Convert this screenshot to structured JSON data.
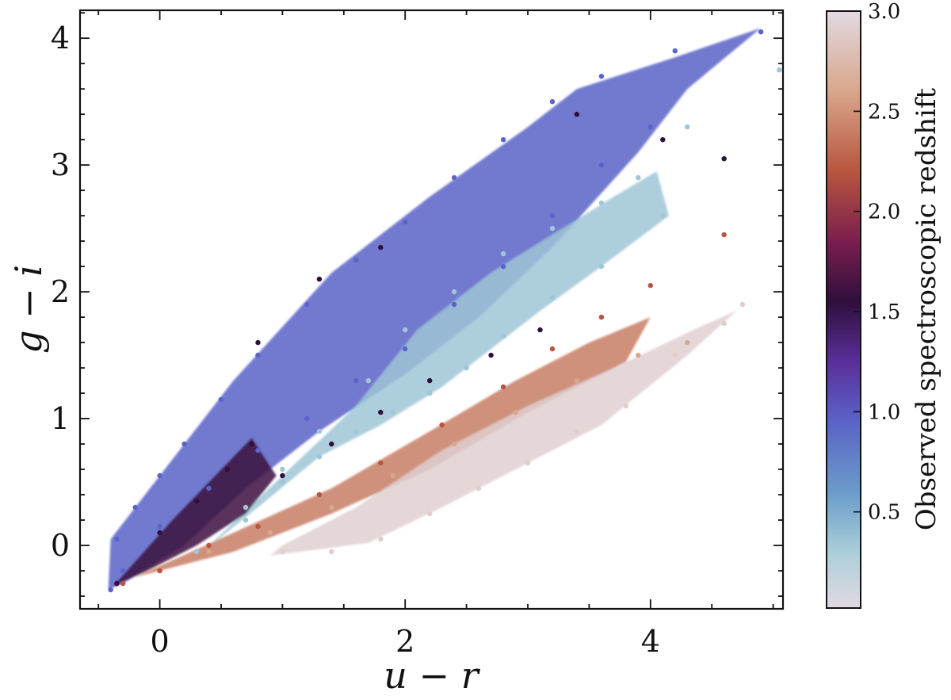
{
  "chart_data": {
    "type": "scatter",
    "title": "",
    "xlabel": "u − r",
    "ylabel": "g − i",
    "xlim": [
      -0.65,
      5.08
    ],
    "ylim": [
      -0.5,
      4.22
    ],
    "xticks": [
      0,
      2,
      4
    ],
    "yticks": [
      0,
      1,
      2,
      3,
      4
    ],
    "xtick_labels": [
      "0",
      "2",
      "4"
    ],
    "ytick_labels": [
      "0",
      "1",
      "2",
      "3",
      "4"
    ],
    "grid": false,
    "legend": "none",
    "colorbar": {
      "label": "Observed spectroscopic redshift",
      "range": [
        0.02,
        3.0
      ],
      "ticks": [
        0.5,
        1.0,
        1.5,
        2.0,
        2.5,
        3.0
      ],
      "tick_labels": [
        "0.5",
        "1.0",
        "1.5",
        "2.0",
        "2.5",
        "3.0"
      ],
      "colormap_stops": [
        {
          "z": 0.02,
          "color": "#e2d9e2"
        },
        {
          "z": 0.3,
          "color": "#aacfd9"
        },
        {
          "z": 0.6,
          "color": "#6a9bc9"
        },
        {
          "z": 0.95,
          "color": "#5b63c8"
        },
        {
          "z": 1.25,
          "color": "#5a2e9a"
        },
        {
          "z": 1.55,
          "color": "#2f0f3c"
        },
        {
          "z": 1.85,
          "color": "#7a1e4e"
        },
        {
          "z": 2.2,
          "color": "#b8553e"
        },
        {
          "z": 2.6,
          "color": "#d9a78b"
        },
        {
          "z": 3.0,
          "color": "#e2d9e2"
        }
      ]
    },
    "series": [
      {
        "z": 0.95,
        "points": [
          [
            -0.4,
            -0.35
          ],
          [
            -0.35,
            0.05
          ],
          [
            -0.2,
            0.3
          ],
          [
            0.0,
            0.55
          ],
          [
            0.2,
            0.8
          ],
          [
            0.5,
            1.15
          ],
          [
            0.8,
            1.5
          ],
          [
            1.2,
            1.9
          ],
          [
            1.6,
            2.25
          ],
          [
            2.0,
            2.55
          ],
          [
            2.4,
            2.9
          ],
          [
            2.8,
            3.2
          ],
          [
            3.2,
            3.5
          ],
          [
            3.6,
            3.7
          ],
          [
            4.2,
            3.9
          ],
          [
            4.9,
            4.05
          ],
          [
            4.0,
            3.3
          ],
          [
            3.6,
            3.0
          ],
          [
            3.2,
            2.6
          ],
          [
            2.8,
            2.2
          ],
          [
            2.4,
            1.9
          ],
          [
            2.0,
            1.55
          ],
          [
            1.6,
            1.3
          ],
          [
            1.2,
            1.0
          ],
          [
            0.8,
            0.75
          ],
          [
            0.4,
            0.45
          ],
          [
            0.0,
            0.15
          ],
          [
            -0.3,
            -0.2
          ]
        ]
      },
      {
        "z": 0.35,
        "points": [
          [
            0.3,
            -0.05
          ],
          [
            0.7,
            0.3
          ],
          [
            1.0,
            0.6
          ],
          [
            1.3,
            0.9
          ],
          [
            1.7,
            1.3
          ],
          [
            2.0,
            1.7
          ],
          [
            2.4,
            2.0
          ],
          [
            2.8,
            2.3
          ],
          [
            3.2,
            2.5
          ],
          [
            3.6,
            2.7
          ],
          [
            3.9,
            2.9
          ],
          [
            4.3,
            3.3
          ],
          [
            5.05,
            3.75
          ],
          [
            4.1,
            2.6
          ],
          [
            3.6,
            2.2
          ],
          [
            3.2,
            1.95
          ],
          [
            2.8,
            1.65
          ],
          [
            2.5,
            1.4
          ],
          [
            2.2,
            1.2
          ],
          [
            1.9,
            1.05
          ],
          [
            1.6,
            0.9
          ],
          [
            1.3,
            0.7
          ],
          [
            1.0,
            0.5
          ],
          [
            0.7,
            0.2
          ]
        ]
      },
      {
        "z": 1.55,
        "points": [
          [
            -0.35,
            -0.3
          ],
          [
            0.0,
            0.1
          ],
          [
            0.3,
            0.35
          ],
          [
            0.55,
            0.6
          ],
          [
            0.75,
            0.8
          ],
          [
            1.0,
            0.55
          ],
          [
            1.4,
            0.8
          ],
          [
            1.8,
            1.05
          ],
          [
            2.2,
            1.3
          ],
          [
            2.7,
            1.5
          ],
          [
            3.1,
            1.7
          ],
          [
            3.4,
            3.4
          ],
          [
            4.1,
            3.2
          ],
          [
            4.6,
            3.05
          ],
          [
            0.8,
            1.6
          ],
          [
            1.3,
            2.1
          ],
          [
            1.8,
            2.35
          ]
        ]
      },
      {
        "z": 2.2,
        "points": [
          [
            -0.3,
            -0.3
          ],
          [
            0.0,
            -0.2
          ],
          [
            0.4,
            0.0
          ],
          [
            0.8,
            0.15
          ],
          [
            1.3,
            0.4
          ],
          [
            1.8,
            0.65
          ],
          [
            2.3,
            0.95
          ],
          [
            2.8,
            1.25
          ],
          [
            3.2,
            1.55
          ],
          [
            3.6,
            1.8
          ],
          [
            4.0,
            2.05
          ],
          [
            4.6,
            2.45
          ]
        ]
      },
      {
        "z": 2.6,
        "points": [
          [
            0.4,
            -0.05
          ],
          [
            0.9,
            0.1
          ],
          [
            1.4,
            0.3
          ],
          [
            1.9,
            0.55
          ],
          [
            2.4,
            0.8
          ],
          [
            2.9,
            1.05
          ],
          [
            3.4,
            1.3
          ],
          [
            3.9,
            1.5
          ],
          [
            4.3,
            1.6
          ]
        ]
      },
      {
        "z": 2.9,
        "points": [
          [
            1.0,
            -0.05
          ],
          [
            1.4,
            -0.05
          ],
          [
            1.8,
            0.05
          ],
          [
            2.2,
            0.25
          ],
          [
            2.6,
            0.45
          ],
          [
            3.0,
            0.65
          ],
          [
            3.4,
            0.9
          ],
          [
            3.8,
            1.1
          ],
          [
            4.2,
            1.5
          ],
          [
            4.6,
            1.75
          ],
          [
            4.75,
            1.9
          ]
        ]
      }
    ]
  }
}
